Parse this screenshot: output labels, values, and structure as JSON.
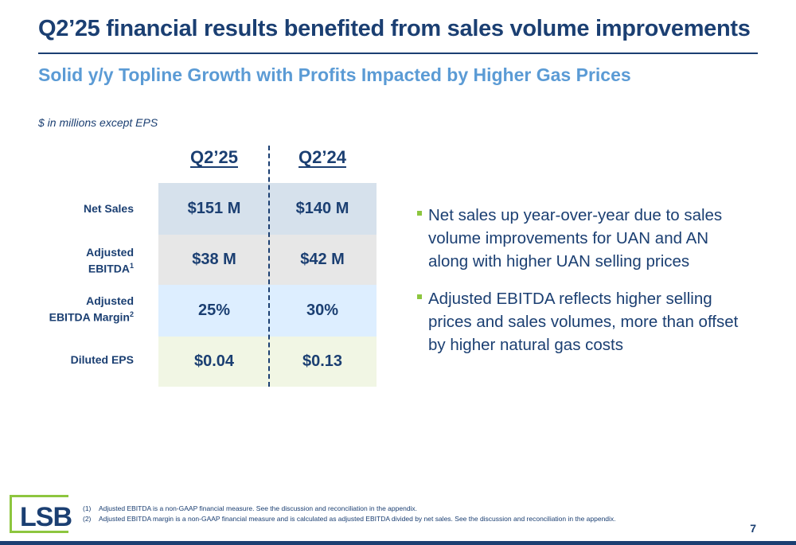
{
  "slide": {
    "title": "Q2’25 financial results benefited from sales volume improvements",
    "subtitle": "Solid y/y Topline Growth with Profits Impacted by Higher Gas Prices",
    "units_note": "$ in millions except EPS",
    "page_number": "7"
  },
  "table": {
    "columns": [
      "Q2’25",
      "Q2’24"
    ],
    "rows": [
      {
        "label": "Net Sales",
        "label_sup": "",
        "values": [
          "$151 M",
          "$140 M"
        ]
      },
      {
        "label_line1": "Adjusted",
        "label_line2": "EBITDA",
        "label_sup": "1",
        "values": [
          "$38 M",
          "$42 M"
        ]
      },
      {
        "label_line1": "Adjusted",
        "label_line2": "EBITDA Margin",
        "label_sup": "2",
        "values": [
          "25%",
          "30%"
        ]
      },
      {
        "label": "Diluted EPS",
        "label_sup": "",
        "values": [
          "$0.04",
          "$0.13"
        ]
      }
    ]
  },
  "bullets": [
    "Net sales up year-over-year due to sales volume improvements for UAN and AN along with higher UAN selling prices",
    "Adjusted EBITDA reflects higher selling prices and sales volumes, more than offset by higher natural gas costs"
  ],
  "footnotes": [
    {
      "num": "(1)",
      "text": "Adjusted EBITDA is a non-GAAP financial measure.  See the discussion and reconciliation in the appendix."
    },
    {
      "num": "(2)",
      "text": "Adjusted EBITDA margin is a non-GAAP financial measure and is calculated as adjusted EBITDA divided by net sales. See the discussion and reconciliation in the appendix."
    }
  ],
  "logo": {
    "text": "LSB"
  },
  "colors": {
    "navy": "#1b3f72",
    "accent_blue": "#5b9bd5",
    "accent_green": "#8dc63f"
  }
}
